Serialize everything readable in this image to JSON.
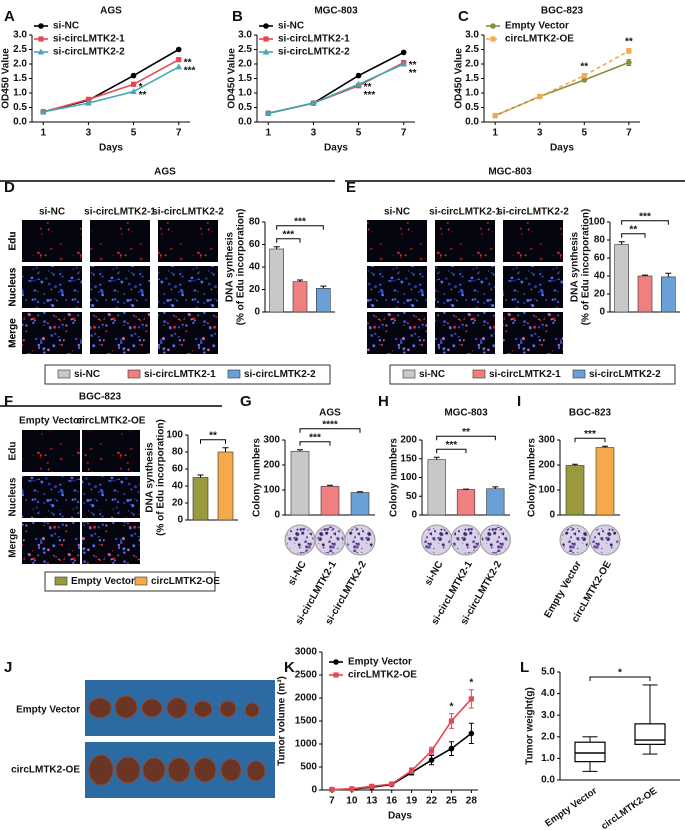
{
  "panel_letters": [
    "A",
    "B",
    "C",
    "D",
    "E",
    "F",
    "G",
    "H",
    "I",
    "J",
    "K",
    "L"
  ],
  "image_panels": [
    {
      "title": "AGS",
      "columns": [
        "si-NC",
        "si-circLMTK2-1",
        "si-circLMTK2-2"
      ],
      "rows": [
        "Edu",
        "Nucleus",
        "Merge"
      ]
    },
    {
      "title": "MGC-803",
      "columns": [
        "si-NC",
        "si-circLMTK2-1",
        "si-circLMTK2-2"
      ],
      "rows": [
        "Edu",
        "Nucleus",
        "Merge"
      ]
    },
    {
      "title": "BGC-823",
      "columns": [
        "Empty Vector",
        "circLMTK2-OE"
      ],
      "rows": [
        "Edu",
        "Nucleus",
        "Merge"
      ]
    }
  ],
  "tumor_photo": {
    "rows": [
      "Empty Vector",
      "circLMTK2-OE"
    ]
  },
  "chart_data": [
    {
      "type": "line",
      "title": "AGS",
      "xlabel": "Days",
      "ylabel": "OD450 Value",
      "x": [
        1,
        3,
        5,
        7
      ],
      "xlim": [
        0.5,
        7.5
      ],
      "xticks": [
        1,
        3,
        5,
        7
      ],
      "ylim": [
        0,
        3
      ],
      "yticks": [
        {
          "value": 0,
          "label": "0.0"
        },
        0.5,
        {
          "value": 1,
          "label": "1.0"
        },
        1.5,
        {
          "value": 2,
          "label": "2.0"
        },
        2.5,
        {
          "value": 3,
          "label": "3.0"
        }
      ],
      "series": [
        {
          "name": "si-NC",
          "color": "#000000",
          "marker": "circle",
          "values": [
            0.35,
            0.75,
            1.6,
            2.5
          ]
        },
        {
          "name": "si-circLMTK2-1",
          "color": "#e8474f",
          "marker": "square",
          "values": [
            0.35,
            0.78,
            1.3,
            2.15
          ]
        },
        {
          "name": "si-circLMTK2-2",
          "color": "#3fa9b5",
          "marker": "triangle",
          "values": [
            0.35,
            0.65,
            1.05,
            1.9
          ]
        }
      ],
      "annotation_position": "right",
      "annotations": [
        {
          "text": "*",
          "series": 1,
          "index": 2
        },
        {
          "text": "**",
          "series": 2,
          "index": 2
        },
        {
          "text": "**",
          "series": 1,
          "index": 3
        },
        {
          "text": "***",
          "series": 2,
          "index": 3
        }
      ]
    },
    {
      "type": "line",
      "title": "MGC-803",
      "xlabel": "Days",
      "ylabel": "OD450 Value",
      "x": [
        1,
        3,
        5,
        7
      ],
      "xlim": [
        0.5,
        7.5
      ],
      "xticks": [
        1,
        3,
        5,
        7
      ],
      "ylim": [
        0,
        3
      ],
      "yticks": [
        {
          "value": 0,
          "label": "0.0"
        },
        0.5,
        {
          "value": 1,
          "label": "1.0"
        },
        1.5,
        {
          "value": 2,
          "label": "2.0"
        },
        2.5,
        {
          "value": 3,
          "label": "3.0"
        }
      ],
      "series": [
        {
          "name": "si-NC",
          "color": "#000000",
          "marker": "circle",
          "values": [
            0.3,
            0.65,
            1.6,
            2.4
          ]
        },
        {
          "name": "si-circLMTK2-1",
          "color": "#e8474f",
          "marker": "square",
          "values": [
            0.3,
            0.65,
            1.25,
            2.05
          ]
        },
        {
          "name": "si-circLMTK2-2",
          "color": "#3fa9b5",
          "marker": "triangle",
          "values": [
            0.3,
            0.65,
            1.3,
            2.0
          ]
        }
      ],
      "annotation_position": "right",
      "annotations": [
        {
          "text": "**",
          "series": 2,
          "index": 2
        },
        {
          "text": "***",
          "series": 1,
          "index": 2
        },
        {
          "text": "**",
          "series": 1,
          "index": 3
        },
        {
          "text": "**",
          "series": 2,
          "index": 3
        }
      ]
    },
    {
      "type": "line",
      "title": "BGC-823",
      "xlabel": "Days",
      "ylabel": "OD450 Value",
      "x": [
        1,
        3,
        5,
        7
      ],
      "xlim": [
        0.5,
        7.5
      ],
      "xticks": [
        1,
        3,
        5,
        7
      ],
      "ylim": [
        0,
        3
      ],
      "yticks": [
        {
          "value": 0,
          "label": "0.0"
        },
        0.5,
        {
          "value": 1,
          "label": "1.0"
        },
        1.5,
        {
          "value": 2,
          "label": "2.0"
        },
        2.5,
        {
          "value": 3,
          "label": "3.0"
        }
      ],
      "series": [
        {
          "name": "Empty Vector",
          "color": "#8c8c3c",
          "marker": "circle",
          "values": [
            0.22,
            0.88,
            1.45,
            2.05
          ],
          "errors": [
            0.02,
            0.03,
            0.05,
            0.1
          ]
        },
        {
          "name": "circLMTK2-OE",
          "color": "#f5a94a",
          "marker": "square",
          "linestyle": "dashed",
          "values": [
            0.22,
            0.88,
            1.6,
            2.45
          ],
          "errors": [
            0.02,
            0.03,
            0.06,
            0.08
          ]
        }
      ],
      "annotation_position": "above",
      "annotations": [
        {
          "text": "**",
          "series": 1,
          "index": 2
        },
        {
          "text": "**",
          "series": 1,
          "index": 3
        }
      ]
    },
    {
      "type": "bar",
      "ylabel": [
        "DNA synthesis",
        "(% of Edu incorporation)"
      ],
      "categories": [
        "si-NC",
        "si-circLMTK2-1",
        "si-circLMTK2-2"
      ],
      "values": [
        56,
        27,
        21
      ],
      "errors": [
        2,
        1.5,
        2
      ],
      "colors": [
        "#c8c8c8",
        "#f08080",
        "#6a9fd8"
      ],
      "ylim": [
        0,
        80
      ],
      "yticks": [
        0,
        20,
        40,
        60,
        80
      ],
      "legend": true,
      "significance": [
        {
          "text": "***",
          "between": [
            0,
            1
          ]
        },
        {
          "text": "***",
          "between": [
            0,
            2
          ]
        }
      ]
    },
    {
      "type": "bar",
      "ylabel": [
        "DNA synthesis",
        "(% of Edu incorporation)"
      ],
      "categories": [
        "si-NC",
        "si-circLMTK2-1",
        "si-circLMTK2-2"
      ],
      "values": [
        75,
        40,
        39
      ],
      "errors": [
        3,
        1,
        4
      ],
      "colors": [
        "#c8c8c8",
        "#f08080",
        "#6a9fd8"
      ],
      "ylim": [
        0,
        100
      ],
      "yticks": [
        0,
        20,
        40,
        60,
        80,
        100
      ],
      "legend": true,
      "significance": [
        {
          "text": "**",
          "between": [
            0,
            1
          ]
        },
        {
          "text": "***",
          "between": [
            0,
            2
          ]
        }
      ]
    },
    {
      "type": "bar",
      "ylabel": [
        "DNA synthesis",
        "(% of Edu incorporation)"
      ],
      "categories": [
        "Empty Vector",
        "circLMTK2-OE"
      ],
      "values": [
        50,
        80
      ],
      "errors": [
        3,
        5
      ],
      "colors": [
        "#9a9a3c",
        "#f5a94a"
      ],
      "ylim": [
        0,
        100
      ],
      "yticks": [
        0,
        20,
        40,
        60,
        80,
        100
      ],
      "legend": true,
      "significance": [
        {
          "text": "**",
          "between": [
            0,
            1
          ]
        }
      ]
    },
    {
      "type": "bar",
      "title": "AGS",
      "ylabel": "Colony numbers",
      "categories": [
        "si-NC",
        "si-circLMTK2-1",
        "si-circLMTK2-2"
      ],
      "values": [
        255,
        115,
        90
      ],
      "errors": [
        6,
        4,
        3
      ],
      "colors": [
        "#c8c8c8",
        "#f08080",
        "#6a9fd8"
      ],
      "ylim": [
        0,
        300
      ],
      "yticks": [
        0,
        100,
        200,
        300
      ],
      "legend": false,
      "significance": [
        {
          "text": "***",
          "between": [
            0,
            1
          ]
        },
        {
          "text": "****",
          "between": [
            0,
            2
          ]
        }
      ]
    },
    {
      "type": "bar",
      "title": "MGC-803",
      "ylabel": "Colony numbers",
      "categories": [
        "si-NC",
        "si-circLMTK2-1",
        "si-circLMTK2-2"
      ],
      "values": [
        148,
        68,
        70
      ],
      "errors": [
        6,
        1,
        5
      ],
      "colors": [
        "#c8c8c8",
        "#f08080",
        "#6a9fd8"
      ],
      "ylim": [
        0,
        200
      ],
      "yticks": [
        0,
        50,
        100,
        150,
        200
      ],
      "legend": false,
      "significance": [
        {
          "text": "***",
          "between": [
            0,
            1
          ]
        },
        {
          "text": "**",
          "between": [
            0,
            2
          ]
        }
      ]
    },
    {
      "type": "bar",
      "title": "BGC-823",
      "ylabel": "Colony numbers",
      "categories": [
        "Empty Vector",
        "circLMTK2-OE"
      ],
      "values": [
        198,
        270
      ],
      "errors": [
        5,
        5
      ],
      "colors": [
        "#9a9a3c",
        "#f5a94a"
      ],
      "ylim": [
        0,
        300
      ],
      "yticks": [
        0,
        100,
        200,
        300
      ],
      "legend": false,
      "significance": [
        {
          "text": "***",
          "between": [
            0,
            1
          ]
        }
      ]
    },
    {
      "type": "line",
      "xlabel": "Days",
      "ylabel": "Tumor volume (m³)",
      "x": [
        7,
        10,
        13,
        16,
        19,
        22,
        25,
        28
      ],
      "xlim": [
        5.5,
        29
      ],
      "xticks": [
        7,
        10,
        13,
        16,
        19,
        22,
        25,
        28
      ],
      "ylim": [
        0,
        3000
      ],
      "yticks": [
        0,
        500,
        1000,
        1500,
        2000,
        2500,
        3000
      ],
      "series": [
        {
          "name": "Empty Vector",
          "color": "#000000",
          "marker": "circle",
          "values": [
            10,
            20,
            60,
            120,
            380,
            650,
            900,
            1230
          ],
          "errors": [
            5,
            10,
            20,
            30,
            50,
            100,
            150,
            220
          ]
        },
        {
          "name": "circLMTK2-OE",
          "color": "#e8474f",
          "marker": "square",
          "values": [
            10,
            25,
            80,
            130,
            420,
            850,
            1500,
            1980
          ],
          "errors": [
            5,
            10,
            20,
            30,
            60,
            80,
            160,
            200
          ]
        }
      ],
      "annotation_position": "above",
      "annotations": [
        {
          "text": "*",
          "series": 1,
          "index": 6
        },
        {
          "text": "*",
          "series": 1,
          "index": 7
        }
      ]
    },
    {
      "type": "box",
      "ylabel": "Tumor weight(g)",
      "categories": [
        "Empty Vector",
        "circLMTK2-OE"
      ],
      "boxes": [
        {
          "min": 0.4,
          "q1": 0.85,
          "median": 1.25,
          "q3": 1.75,
          "max": 2.0
        },
        {
          "min": 1.2,
          "q1": 1.65,
          "median": 1.85,
          "q3": 2.6,
          "max": 4.4
        }
      ],
      "ylim": [
        0,
        5
      ],
      "yticks": [
        {
          "value": 0,
          "label": "0.0"
        },
        {
          "value": 1,
          "label": "1.0"
        },
        {
          "value": 2,
          "label": "2.0"
        },
        {
          "value": 3,
          "label": "3.0"
        },
        {
          "value": 4,
          "label": "4.0"
        },
        {
          "value": 5,
          "label": "5.0"
        }
      ],
      "significance": [
        {
          "text": "*",
          "between": [
            0,
            1
          ]
        }
      ]
    }
  ]
}
